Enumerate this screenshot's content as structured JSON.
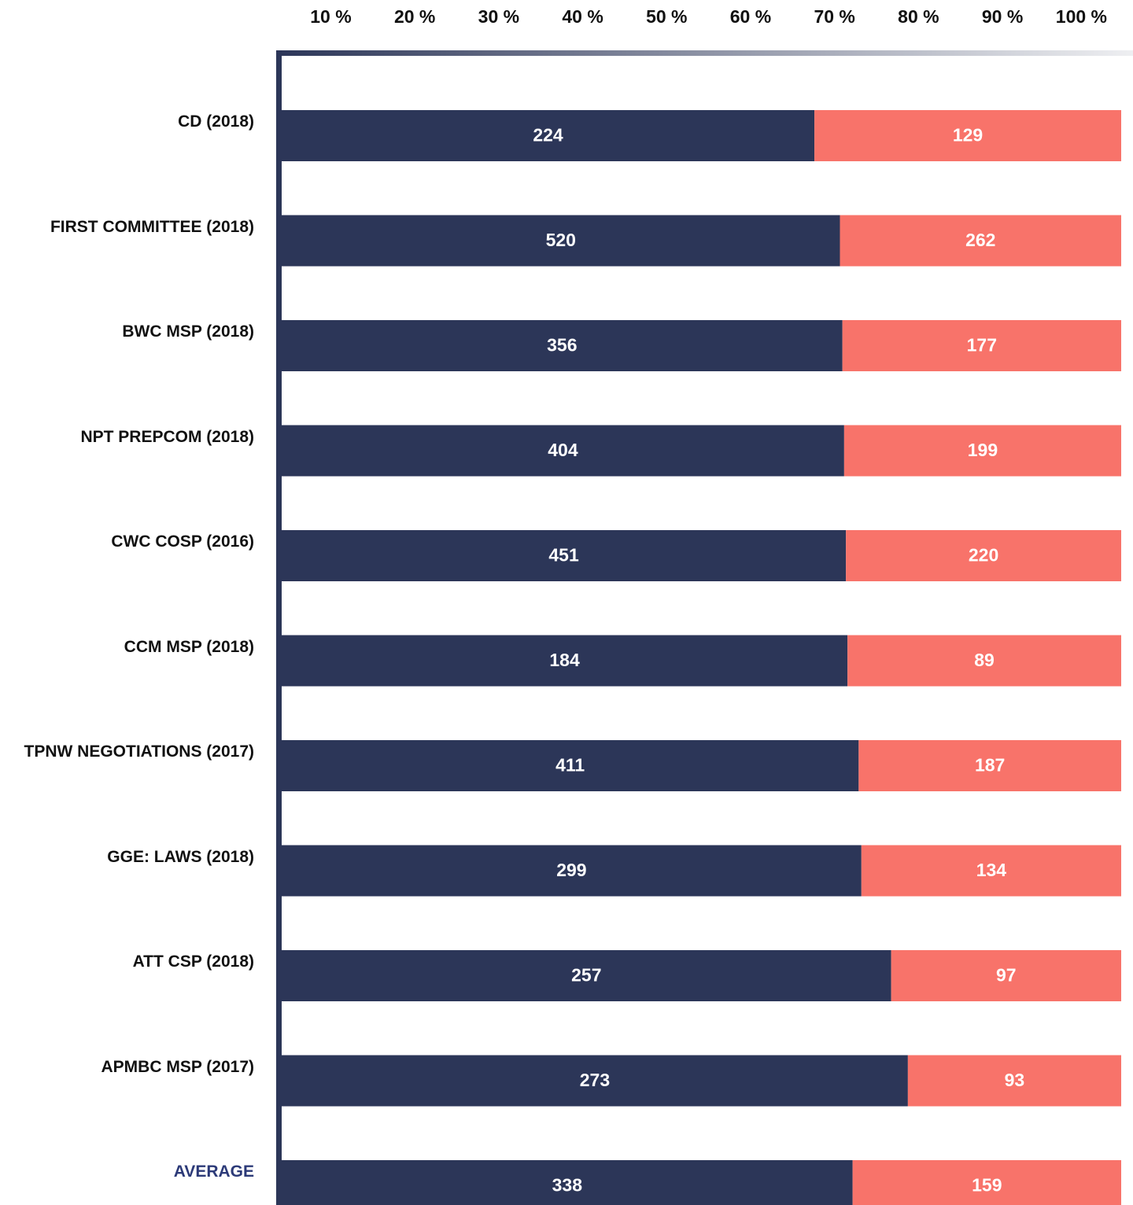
{
  "chart_data": {
    "type": "stacked-bar-100",
    "categories": [
      "CD (2018)",
      "FIRST COMMITTEE (2018)",
      "BWC MSP (2018)",
      "NPT PREPCOM (2018)",
      "CWC COSP (2016)",
      "CCM MSP (2018)",
      "TPNW NEGOTIATIONS (2017)",
      "GGE: LAWS (2018)",
      "ATT CSP (2018)",
      "APMBC MSP (2017)",
      "AVERAGE"
    ],
    "series": [
      {
        "color": "#2c3658",
        "values": [
          224,
          520,
          356,
          404,
          451,
          184,
          411,
          299,
          257,
          273,
          338
        ]
      },
      {
        "color": "#f8736a",
        "values": [
          129,
          262,
          177,
          199,
          220,
          89,
          187,
          134,
          97,
          93,
          159
        ]
      }
    ],
    "xlim": [
      0,
      100
    ],
    "xticks": [
      {
        "value": 10,
        "label": "10 %"
      },
      {
        "value": 20,
        "label": "20 %"
      },
      {
        "value": 30,
        "label": "30 %"
      },
      {
        "value": 40,
        "label": "40 %"
      },
      {
        "value": 50,
        "label": "50 %"
      },
      {
        "value": 60,
        "label": "60 %"
      },
      {
        "value": 70,
        "label": "70 %"
      },
      {
        "value": 80,
        "label": "80 %"
      },
      {
        "value": 90,
        "label": "90 %"
      },
      {
        "value": 100,
        "label": "100 %"
      }
    ]
  }
}
